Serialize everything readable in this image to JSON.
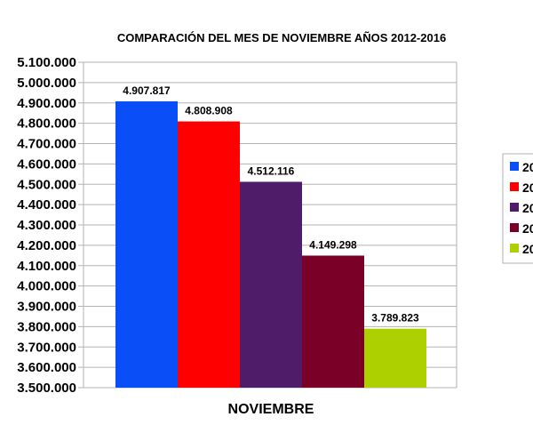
{
  "chart_data": {
    "type": "bar",
    "title": "COMPARACIÓN DEL MES DE NOVIEMBRE AÑOS 2012-2016",
    "categories": [
      "NOVIEMBRE"
    ],
    "series": [
      {
        "name": "20",
        "values": [
          4907817
        ],
        "label": "4.907.817",
        "color": "#0a4ef7"
      },
      {
        "name": "20",
        "values": [
          4808908
        ],
        "label": "4.808.908",
        "color": "#ff0000"
      },
      {
        "name": "20",
        "values": [
          4512116
        ],
        "label": "4.512.116",
        "color": "#4f1c6a"
      },
      {
        "name": "20",
        "values": [
          4149298
        ],
        "label": "4.149.298",
        "color": "#7a0027"
      },
      {
        "name": "20",
        "values": [
          3789823
        ],
        "label": "3.789.823",
        "color": "#acd000"
      }
    ],
    "ylim": [
      3500000,
      5100000
    ],
    "yticks": [
      {
        "value": 3500000,
        "label": "3.500.000"
      },
      {
        "value": 3600000,
        "label": "3.600.000"
      },
      {
        "value": 3700000,
        "label": "3.700.000"
      },
      {
        "value": 3800000,
        "label": "3.800.000"
      },
      {
        "value": 3900000,
        "label": "3.900.000"
      },
      {
        "value": 4000000,
        "label": "4.000.000"
      },
      {
        "value": 4100000,
        "label": "4.100.000"
      },
      {
        "value": 4200000,
        "label": "4.200.000"
      },
      {
        "value": 4300000,
        "label": "4.300.000"
      },
      {
        "value": 4400000,
        "label": "4.400.000"
      },
      {
        "value": 4500000,
        "label": "4.500.000"
      },
      {
        "value": 4600000,
        "label": "4.600.000"
      },
      {
        "value": 4700000,
        "label": "4.700.000"
      },
      {
        "value": 4800000,
        "label": "4.800.000"
      },
      {
        "value": 4900000,
        "label": "4.900.000"
      },
      {
        "value": 5000000,
        "label": "5.000.000"
      },
      {
        "value": 5100000,
        "label": "5.100.000"
      }
    ],
    "grid": true,
    "legend": "right"
  }
}
